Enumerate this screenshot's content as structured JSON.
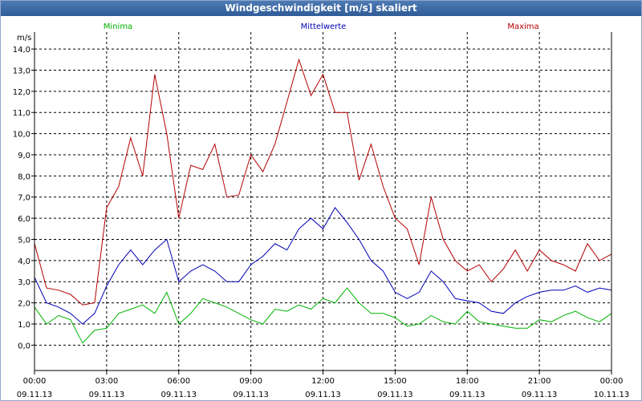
{
  "window": {
    "title": "Windgeschwindigkeit [m/s] skaliert"
  },
  "chart_data": {
    "type": "line",
    "title": "Windgeschwindigkeit [m/s] skaliert",
    "ylabel": "m/s",
    "ylim": [
      -1.2,
      14.8
    ],
    "yticks": [
      0,
      1,
      2,
      3,
      4,
      5,
      6,
      7,
      8,
      9,
      10,
      11,
      12,
      13,
      14
    ],
    "ytick_labels": [
      "0,0",
      "1,0",
      "2,0",
      "3,0",
      "4,0",
      "5,0",
      "6,0",
      "7,0",
      "8,0",
      "9,0",
      "10,0",
      "11,0",
      "12,0",
      "13,0",
      "14,0"
    ],
    "xlim": [
      0,
      24
    ],
    "xticks": [
      0,
      3,
      6,
      9,
      12,
      15,
      18,
      21,
      24
    ],
    "xtick_labels": [
      {
        "time": "00:00",
        "date": "09.11.13"
      },
      {
        "time": "03:00",
        "date": "09.11.13"
      },
      {
        "time": "06:00",
        "date": "09.11.13"
      },
      {
        "time": "09:00",
        "date": "09.11.13"
      },
      {
        "time": "12:00",
        "date": "09.11.13"
      },
      {
        "time": "15:00",
        "date": "09.11.13"
      },
      {
        "time": "18:00",
        "date": "09.11.13"
      },
      {
        "time": "21:00",
        "date": "09.11.13"
      },
      {
        "time": "00:00",
        "date": "10.11.13"
      }
    ],
    "grid": true,
    "series": [
      {
        "name": "Minima",
        "color": "#00b400",
        "legend": "top-left",
        "x": [
          0,
          0.5,
          1,
          1.5,
          2,
          2.5,
          3,
          3.5,
          4,
          4.5,
          5,
          5.5,
          6,
          6.5,
          7,
          7.5,
          8,
          8.5,
          9,
          9.5,
          10,
          10.5,
          11,
          11.5,
          12,
          12.5,
          13,
          13.5,
          14,
          14.5,
          15,
          15.5,
          16,
          16.5,
          17,
          17.5,
          18,
          18.5,
          19,
          19.5,
          20,
          20.5,
          21,
          21.5,
          22,
          22.5,
          23,
          23.5,
          24
        ],
        "values": [
          1.8,
          1.0,
          1.4,
          1.2,
          0.1,
          0.7,
          0.8,
          1.5,
          1.7,
          1.9,
          1.5,
          2.5,
          1.0,
          1.5,
          2.2,
          2.0,
          1.8,
          1.5,
          1.2,
          1.0,
          1.7,
          1.6,
          1.9,
          1.7,
          2.2,
          2.0,
          2.7,
          2.0,
          1.5,
          1.5,
          1.3,
          0.9,
          1.0,
          1.4,
          1.1,
          1.0,
          1.6,
          1.1,
          1.0,
          0.9,
          0.8,
          0.8,
          1.2,
          1.1,
          1.4,
          1.6,
          1.3,
          1.1,
          1.5
        ]
      },
      {
        "name": "Mittelwerte",
        "color": "#0000b4",
        "legend": "top-center",
        "x": [
          0,
          0.5,
          1,
          1.5,
          2,
          2.5,
          3,
          3.5,
          4,
          4.5,
          5,
          5.5,
          6,
          6.5,
          7,
          7.5,
          8,
          8.5,
          9,
          9.5,
          10,
          10.5,
          11,
          11.5,
          12,
          12.5,
          13,
          13.5,
          14,
          14.5,
          15,
          15.5,
          16,
          16.5,
          17,
          17.5,
          18,
          18.5,
          19,
          19.5,
          20,
          20.5,
          21,
          21.5,
          22,
          22.5,
          23,
          23.5,
          24
        ],
        "values": [
          3.2,
          2.0,
          1.8,
          1.5,
          1.0,
          1.5,
          2.8,
          3.8,
          4.5,
          3.8,
          4.5,
          5.0,
          3.0,
          3.5,
          3.8,
          3.5,
          3.0,
          3.0,
          3.8,
          4.2,
          4.8,
          4.5,
          5.5,
          6.0,
          5.5,
          6.5,
          5.8,
          5.0,
          4.0,
          3.5,
          2.5,
          2.2,
          2.5,
          3.5,
          3.0,
          2.2,
          2.1,
          2.0,
          1.6,
          1.5,
          2.0,
          2.3,
          2.5,
          2.6,
          2.6,
          2.8,
          2.5,
          2.7,
          2.6
        ]
      },
      {
        "name": "Maxima",
        "color": "#b40000",
        "legend": "top-right",
        "x": [
          0,
          0.5,
          1,
          1.5,
          2,
          2.5,
          3,
          3.5,
          4,
          4.5,
          5,
          5.5,
          6,
          6.5,
          7,
          7.5,
          8,
          8.5,
          9,
          9.5,
          10,
          10.5,
          11,
          11.5,
          12,
          12.5,
          13,
          13.5,
          14,
          14.5,
          15,
          15.5,
          16,
          16.5,
          17,
          17.5,
          18,
          18.5,
          19,
          19.5,
          20,
          20.5,
          21,
          21.5,
          22,
          22.5,
          23,
          23.5,
          24
        ],
        "values": [
          4.8,
          2.7,
          2.6,
          2.4,
          1.9,
          2.0,
          6.5,
          7.5,
          9.8,
          8.0,
          12.8,
          10.0,
          6.0,
          8.5,
          8.3,
          9.5,
          7.0,
          7.1,
          9.0,
          8.2,
          9.5,
          11.5,
          13.5,
          11.8,
          12.8,
          11.0,
          11.0,
          7.8,
          9.5,
          7.5,
          6.0,
          5.5,
          3.8,
          7.0,
          5.0,
          4.0,
          3.5,
          3.8,
          3.0,
          3.6,
          4.5,
          3.5,
          4.5,
          4.0,
          3.8,
          3.5,
          4.8,
          4.0,
          4.3
        ]
      }
    ]
  }
}
